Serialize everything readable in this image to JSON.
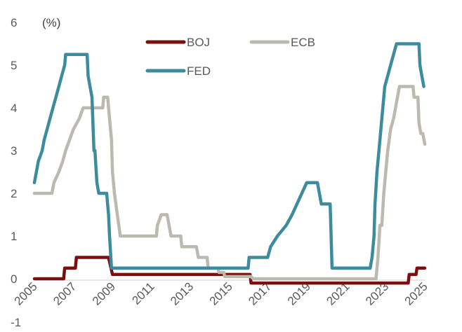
{
  "chart_data": {
    "type": "line",
    "unit_label": "(%)",
    "title": "",
    "xlabel": "",
    "ylabel": "",
    "xlim": [
      2005,
      2025
    ],
    "ylim": [
      -1,
      6
    ],
    "y_ticks": [
      "6",
      "5",
      "4",
      "3",
      "2",
      "1",
      "0",
      "-1"
    ],
    "x_ticks": [
      "2005",
      "2007",
      "2009",
      "2011",
      "2013",
      "2015",
      "2017",
      "2019",
      "2021",
      "2023",
      "2025"
    ],
    "grid": false,
    "legend_position": "top",
    "series": [
      {
        "name": "BOJ",
        "color": "#7b0f0f",
        "points": [
          [
            2005.0,
            0.0
          ],
          [
            2006.5,
            0.0
          ],
          [
            2006.55,
            0.25
          ],
          [
            2007.1,
            0.25
          ],
          [
            2007.15,
            0.5
          ],
          [
            2008.8,
            0.5
          ],
          [
            2008.9,
            0.3
          ],
          [
            2009.0,
            0.1
          ],
          [
            2016.05,
            0.1
          ],
          [
            2016.1,
            -0.1
          ],
          [
            2024.15,
            -0.1
          ],
          [
            2024.2,
            0.1
          ],
          [
            2024.55,
            0.1
          ],
          [
            2024.6,
            0.25
          ],
          [
            2025.0,
            0.25
          ]
        ]
      },
      {
        "name": "ECB",
        "color": "#bcbab0",
        "points": [
          [
            2005.0,
            2.0
          ],
          [
            2005.9,
            2.0
          ],
          [
            2006.0,
            2.25
          ],
          [
            2006.25,
            2.5
          ],
          [
            2006.45,
            2.75
          ],
          [
            2006.6,
            3.0
          ],
          [
            2006.8,
            3.25
          ],
          [
            2007.0,
            3.5
          ],
          [
            2007.3,
            3.75
          ],
          [
            2007.5,
            4.0
          ],
          [
            2008.5,
            4.0
          ],
          [
            2008.55,
            4.25
          ],
          [
            2008.75,
            4.25
          ],
          [
            2008.85,
            3.75
          ],
          [
            2008.95,
            3.25
          ],
          [
            2009.0,
            2.5
          ],
          [
            2009.1,
            2.0
          ],
          [
            2009.25,
            1.5
          ],
          [
            2009.4,
            1.0
          ],
          [
            2011.25,
            1.0
          ],
          [
            2011.3,
            1.25
          ],
          [
            2011.5,
            1.5
          ],
          [
            2011.8,
            1.5
          ],
          [
            2011.9,
            1.25
          ],
          [
            2012.0,
            1.0
          ],
          [
            2012.5,
            1.0
          ],
          [
            2012.55,
            0.75
          ],
          [
            2013.3,
            0.75
          ],
          [
            2013.4,
            0.5
          ],
          [
            2013.85,
            0.5
          ],
          [
            2013.9,
            0.25
          ],
          [
            2014.4,
            0.25
          ],
          [
            2014.45,
            0.15
          ],
          [
            2014.7,
            0.15
          ],
          [
            2014.75,
            0.05
          ],
          [
            2016.1,
            0.05
          ],
          [
            2016.2,
            0.0
          ],
          [
            2022.5,
            0.0
          ],
          [
            2022.6,
            0.5
          ],
          [
            2022.7,
            1.25
          ],
          [
            2022.8,
            1.25
          ],
          [
            2022.9,
            2.0
          ],
          [
            2023.0,
            2.5
          ],
          [
            2023.1,
            3.0
          ],
          [
            2023.25,
            3.5
          ],
          [
            2023.4,
            3.75
          ],
          [
            2023.5,
            4.0
          ],
          [
            2023.7,
            4.5
          ],
          [
            2024.4,
            4.5
          ],
          [
            2024.45,
            4.25
          ],
          [
            2024.65,
            4.25
          ],
          [
            2024.7,
            3.65
          ],
          [
            2024.8,
            3.4
          ],
          [
            2024.9,
            3.4
          ],
          [
            2025.0,
            3.15
          ]
        ]
      },
      {
        "name": "FED",
        "color": "#3d8c9e",
        "points": [
          [
            2005.0,
            2.25
          ],
          [
            2005.1,
            2.5
          ],
          [
            2005.2,
            2.75
          ],
          [
            2005.4,
            3.0
          ],
          [
            2005.5,
            3.25
          ],
          [
            2005.65,
            3.5
          ],
          [
            2005.8,
            3.75
          ],
          [
            2005.95,
            4.0
          ],
          [
            2006.1,
            4.25
          ],
          [
            2006.25,
            4.5
          ],
          [
            2006.4,
            4.75
          ],
          [
            2006.55,
            5.0
          ],
          [
            2006.6,
            5.25
          ],
          [
            2007.7,
            5.25
          ],
          [
            2007.75,
            4.75
          ],
          [
            2007.85,
            4.5
          ],
          [
            2007.95,
            4.25
          ],
          [
            2008.05,
            3.0
          ],
          [
            2008.1,
            3.0
          ],
          [
            2008.2,
            2.25
          ],
          [
            2008.3,
            2.0
          ],
          [
            2008.7,
            2.0
          ],
          [
            2008.8,
            1.5
          ],
          [
            2008.85,
            1.0
          ],
          [
            2008.95,
            0.25
          ],
          [
            2015.95,
            0.25
          ],
          [
            2016.0,
            0.5
          ],
          [
            2016.95,
            0.5
          ],
          [
            2017.1,
            0.75
          ],
          [
            2017.45,
            1.0
          ],
          [
            2017.9,
            1.25
          ],
          [
            2018.2,
            1.5
          ],
          [
            2018.45,
            1.75
          ],
          [
            2018.7,
            2.0
          ],
          [
            2018.95,
            2.25
          ],
          [
            2019.5,
            2.25
          ],
          [
            2019.6,
            2.0
          ],
          [
            2019.7,
            1.75
          ],
          [
            2020.15,
            1.75
          ],
          [
            2020.2,
            1.0
          ],
          [
            2020.25,
            0.25
          ],
          [
            2022.2,
            0.25
          ],
          [
            2022.3,
            0.5
          ],
          [
            2022.4,
            1.0
          ],
          [
            2022.45,
            1.75
          ],
          [
            2022.55,
            2.5
          ],
          [
            2022.7,
            3.25
          ],
          [
            2022.85,
            4.0
          ],
          [
            2022.95,
            4.5
          ],
          [
            2023.1,
            4.75
          ],
          [
            2023.25,
            5.0
          ],
          [
            2023.4,
            5.25
          ],
          [
            2023.55,
            5.5
          ],
          [
            2024.7,
            5.5
          ],
          [
            2024.75,
            5.0
          ],
          [
            2024.85,
            4.75
          ],
          [
            2024.95,
            4.5
          ]
        ]
      }
    ]
  }
}
